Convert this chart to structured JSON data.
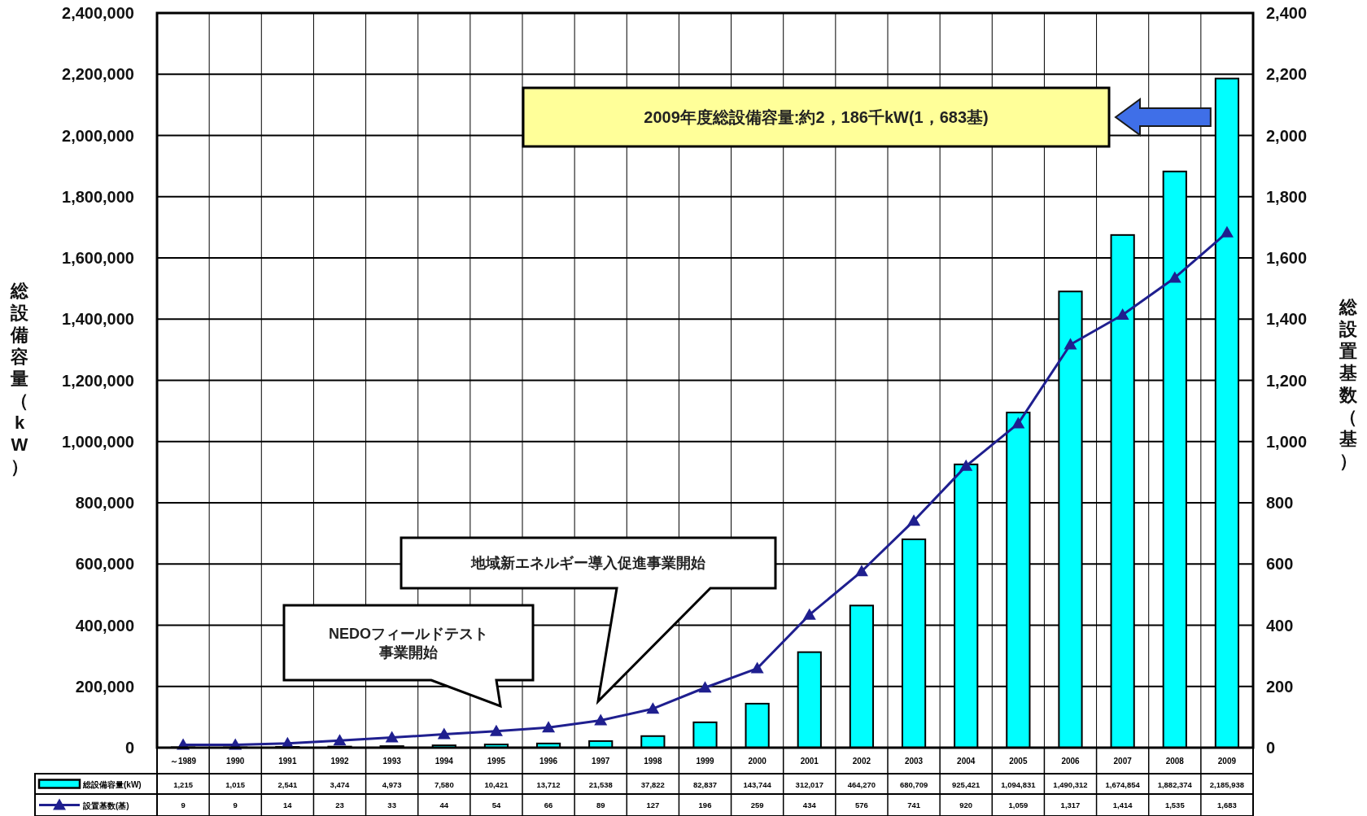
{
  "chart_data": {
    "type": "bar",
    "categories": [
      "～1989",
      "1990",
      "1991",
      "1992",
      "1993",
      "1994",
      "1995",
      "1996",
      "1997",
      "1998",
      "1999",
      "2000",
      "2001",
      "2002",
      "2003",
      "2004",
      "2005",
      "2006",
      "2007",
      "2008",
      "2009"
    ],
    "ylabel": "総設備容量（kW）",
    "y2label": "総設置基数（基）",
    "ylim": [
      0,
      2400000
    ],
    "yticks": [
      0,
      {
        "value": 200000,
        "label": "200,000"
      },
      {
        "value": 400000,
        "label": "400,000"
      },
      {
        "value": 600000,
        "label": "600,000"
      },
      {
        "value": 800000,
        "label": "800,000"
      },
      {
        "value": 1000000,
        "label": "1,000,000"
      },
      {
        "value": 1200000,
        "label": "1,200,000"
      },
      {
        "value": 1400000,
        "label": "1,400,000"
      },
      {
        "value": 1600000,
        "label": "1,600,000"
      },
      {
        "value": 1800000,
        "label": "1,800,000"
      },
      {
        "value": 2000000,
        "label": "2,000,000"
      },
      {
        "value": 2200000,
        "label": "2,200,000"
      },
      {
        "value": 2400000,
        "label": "2,400,000"
      }
    ],
    "y2lim": [
      0,
      2400
    ],
    "y2ticks": [
      0,
      200,
      400,
      600,
      800,
      {
        "value": 1000,
        "label": "1,000"
      },
      {
        "value": 1200,
        "label": "1,200"
      },
      {
        "value": 1400,
        "label": "1,400"
      },
      {
        "value": 1600,
        "label": "1,600"
      },
      {
        "value": 1800,
        "label": "1,800"
      },
      {
        "value": 2000,
        "label": "2,000"
      },
      {
        "value": 2200,
        "label": "2,200"
      },
      {
        "value": 2400,
        "label": "2,400"
      }
    ],
    "series": [
      {
        "name": "総設備容量(kW)",
        "color": "#00ffff",
        "values": [
          1215,
          1015,
          2541,
          3474,
          4973,
          7580,
          10421,
          13712,
          21538,
          37822,
          82837,
          143744,
          312017,
          464270,
          680709,
          925421,
          1094831,
          1490312,
          1674854,
          1882374,
          2185938
        ],
        "value_labels": [
          "1,215",
          "1,015",
          "2,541",
          "3,474",
          "4,973",
          "7,580",
          "10,421",
          "13,712",
          "21,538",
          "37,822",
          "82,837",
          "143,744",
          "312,017",
          "464,270",
          "680,709",
          "925,421",
          "1,094,831",
          "1,490,312",
          "1,674,854",
          "1,882,374",
          "2,185,938"
        ]
      },
      {
        "name": "設置基数(基)",
        "type": "line",
        "axis": "y2",
        "marker": "triangle",
        "color": "#1f1f8f",
        "values": [
          9,
          9,
          14,
          23,
          33,
          44,
          54,
          66,
          89,
          127,
          196,
          259,
          434,
          576,
          741,
          920,
          1059,
          1317,
          1414,
          1535,
          1683
        ],
        "value_labels": [
          "9",
          "9",
          "14",
          "23",
          "33",
          "44",
          "54",
          "66",
          "89",
          "127",
          "196",
          "259",
          "434",
          "576",
          "741",
          "920",
          "1,059",
          "1,317",
          "1,414",
          "1,535",
          "1,683"
        ]
      }
    ],
    "grid": true,
    "legend": "bottom left",
    "annotations": [
      "2009年度総設備容量:約2，186千kW(1，683基)",
      "地域新エネルギー導入促進事業開始",
      "NEDOフィールドテスト事業開始"
    ]
  }
}
